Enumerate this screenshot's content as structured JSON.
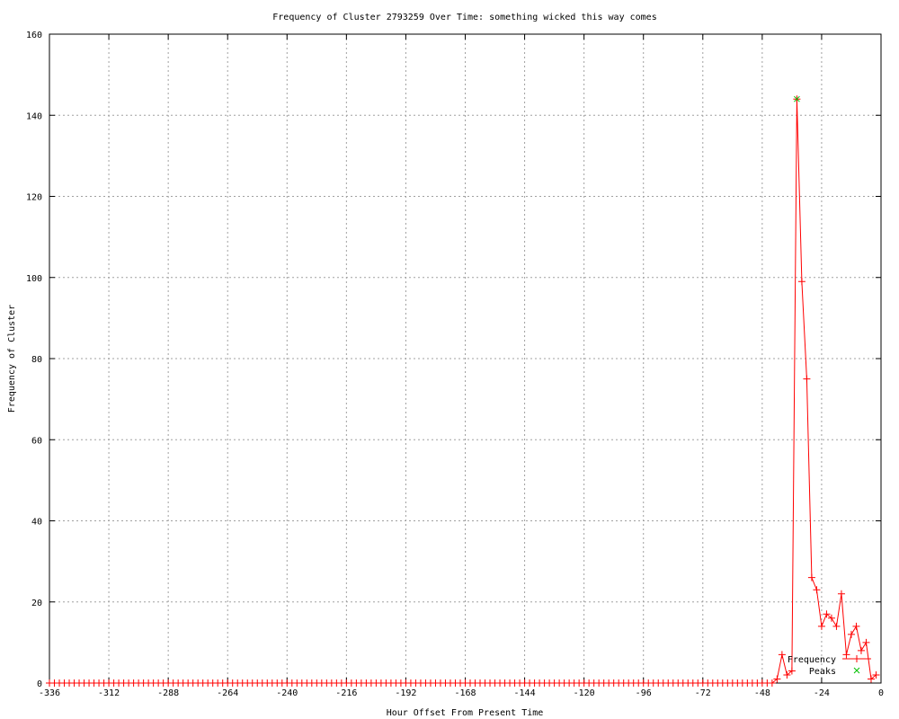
{
  "chart_data": {
    "type": "line",
    "title": "Frequency of Cluster 2793259 Over Time: something wicked this way comes",
    "xlabel": "Hour Offset From Present Time",
    "ylabel": "Frequency of Cluster",
    "xlim": [
      -336,
      0
    ],
    "ylim": [
      0,
      160
    ],
    "xticks": [
      -336,
      -312,
      -288,
      -264,
      -240,
      -216,
      -192,
      -168,
      -144,
      -120,
      -96,
      -72,
      -48,
      -24,
      0
    ],
    "yticks": [
      0,
      20,
      40,
      60,
      80,
      100,
      120,
      140,
      160
    ],
    "grid": true,
    "legend_position": "bottom-right",
    "baseline_note_zero_from": -336,
    "series": [
      {
        "name": "Frequency",
        "color": "#ff0000",
        "marker": "plus",
        "points_nonzero": [
          [
            -42,
            1
          ],
          [
            -40,
            7
          ],
          [
            -38,
            2
          ],
          [
            -36,
            3
          ],
          [
            -34,
            144
          ],
          [
            -32,
            99
          ],
          [
            -30,
            75
          ],
          [
            -28,
            26
          ],
          [
            -26,
            23
          ],
          [
            -24,
            14
          ],
          [
            -22,
            17
          ],
          [
            -20,
            16
          ],
          [
            -18,
            14
          ],
          [
            -16,
            22
          ],
          [
            -14,
            7
          ],
          [
            -12,
            12
          ],
          [
            -10,
            14
          ],
          [
            -8,
            8
          ],
          [
            -6,
            10
          ],
          [
            -4,
            1
          ],
          [
            -2,
            2
          ]
        ],
        "x_step": 2,
        "x_start": -336,
        "x_end": -2,
        "default_value": 0
      },
      {
        "name": "Peaks",
        "color": "#00c000",
        "marker": "cross",
        "points": [
          [
            -34,
            144
          ]
        ]
      }
    ]
  }
}
